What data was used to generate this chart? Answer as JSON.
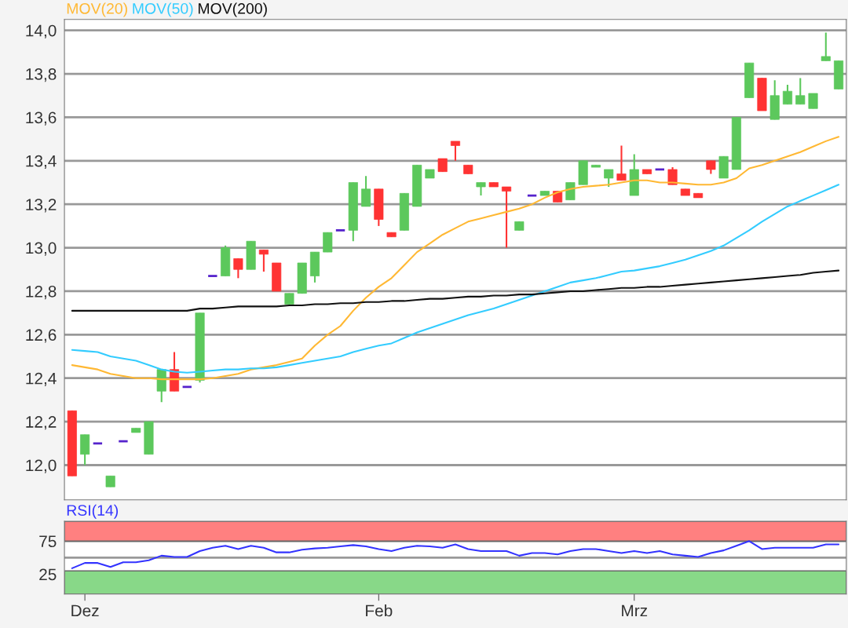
{
  "chart_data": [
    {
      "type": "candlestick",
      "tick_labels": "y",
      "grid": "y",
      "legend": "top left",
      "categories": [
        null,
        null,
        null,
        null,
        null,
        null,
        null,
        null,
        null,
        null,
        null,
        null,
        null,
        null,
        null,
        null,
        null,
        null,
        null,
        null,
        null,
        null,
        null,
        null,
        null,
        null,
        null,
        null,
        null,
        null,
        null,
        null,
        null,
        null,
        null,
        null,
        null,
        null,
        null,
        null,
        null,
        null,
        null,
        null,
        null,
        null,
        null,
        null,
        null,
        null,
        null,
        null,
        null,
        null,
        null,
        null,
        null,
        null,
        null,
        null,
        null
      ],
      "ohlc": [
        [
          12.25,
          12.25,
          11.95,
          11.95
        ],
        [
          12.05,
          12.14,
          12.0,
          12.14
        ],
        [
          12.1,
          12.1,
          12.1,
          12.1
        ],
        [
          11.9,
          11.95,
          11.9,
          11.95
        ],
        [
          12.11,
          12.11,
          12.11,
          12.11
        ],
        [
          12.15,
          12.17,
          12.15,
          12.17
        ],
        [
          12.05,
          12.2,
          12.05,
          12.2
        ],
        [
          12.34,
          12.44,
          12.29,
          12.44
        ],
        [
          12.44,
          12.52,
          12.34,
          12.34
        ],
        [
          12.36,
          12.36,
          12.36,
          12.36
        ],
        [
          12.39,
          12.7,
          12.38,
          12.7
        ],
        [
          12.87,
          12.87,
          12.87,
          12.87
        ],
        [
          12.87,
          13.01,
          12.87,
          13.0
        ],
        [
          12.95,
          12.95,
          12.86,
          12.9
        ],
        [
          12.9,
          13.03,
          12.9,
          13.03
        ],
        [
          12.99,
          12.99,
          12.89,
          12.97
        ],
        [
          12.93,
          12.93,
          12.8,
          12.8
        ],
        [
          12.74,
          12.79,
          12.74,
          12.79
        ],
        [
          12.79,
          12.93,
          12.79,
          12.93
        ],
        [
          12.87,
          12.98,
          12.84,
          12.98
        ],
        [
          12.98,
          13.07,
          12.98,
          13.07
        ],
        [
          13.08,
          13.08,
          13.08,
          13.08
        ],
        [
          13.08,
          13.3,
          13.03,
          13.3
        ],
        [
          13.19,
          13.33,
          13.19,
          13.27
        ],
        [
          13.27,
          13.27,
          13.1,
          13.13
        ],
        [
          13.07,
          13.07,
          13.05,
          13.05
        ],
        [
          13.08,
          13.25,
          13.08,
          13.25
        ],
        [
          13.19,
          13.38,
          13.19,
          13.38
        ],
        [
          13.32,
          13.36,
          13.32,
          13.36
        ],
        [
          13.41,
          13.41,
          13.35,
          13.35
        ],
        [
          13.49,
          13.49,
          13.4,
          13.47
        ],
        [
          13.38,
          13.38,
          13.34,
          13.34
        ],
        [
          13.28,
          13.3,
          13.24,
          13.3
        ],
        [
          13.3,
          13.3,
          13.28,
          13.28
        ],
        [
          13.28,
          13.28,
          13.0,
          13.26
        ],
        [
          13.08,
          13.12,
          13.08,
          13.12
        ],
        [
          13.24,
          13.24,
          13.24,
          13.24
        ],
        [
          13.24,
          13.26,
          13.24,
          13.26
        ],
        [
          13.26,
          13.26,
          13.21,
          13.21
        ],
        [
          13.22,
          13.3,
          13.22,
          13.3
        ],
        [
          13.29,
          13.4,
          13.29,
          13.4
        ],
        [
          13.37,
          13.38,
          13.37,
          13.38
        ],
        [
          13.32,
          13.36,
          13.28,
          13.36
        ],
        [
          13.34,
          13.47,
          13.31,
          13.31
        ],
        [
          13.24,
          13.43,
          13.24,
          13.36
        ],
        [
          13.36,
          13.36,
          13.34,
          13.34
        ],
        [
          13.36,
          13.36,
          13.36,
          13.36
        ],
        [
          13.36,
          13.37,
          13.29,
          13.29
        ],
        [
          13.27,
          13.27,
          13.24,
          13.24
        ],
        [
          13.25,
          13.25,
          13.23,
          13.23
        ],
        [
          13.4,
          13.4,
          13.34,
          13.36
        ],
        [
          13.32,
          13.42,
          13.32,
          13.42
        ],
        [
          13.36,
          13.6,
          13.36,
          13.6
        ],
        [
          13.69,
          13.85,
          13.69,
          13.85
        ],
        [
          13.78,
          13.78,
          13.63,
          13.63
        ],
        [
          13.59,
          13.77,
          13.59,
          13.7
        ],
        [
          13.66,
          13.75,
          13.66,
          13.72
        ],
        [
          13.66,
          13.78,
          13.66,
          13.7
        ],
        [
          13.64,
          13.71,
          13.64,
          13.71
        ],
        [
          13.86,
          13.99,
          13.86,
          13.88
        ],
        [
          13.73,
          13.86,
          13.73,
          13.86
        ]
      ],
      "colors": [
        "#ff3333",
        "#5cc85c",
        "#5522cc",
        "#5cc85c",
        "#5522cc",
        "#5cc85c",
        "#5cc85c",
        "#5cc85c",
        "#ff3333",
        "#5522cc",
        "#5cc85c",
        "#5522cc",
        "#5cc85c",
        "#ff3333",
        "#5cc85c",
        "#ff3333",
        "#ff3333",
        "#5cc85c",
        "#5cc85c",
        "#5cc85c",
        "#5cc85c",
        "#5522cc",
        "#5cc85c",
        "#5cc85c",
        "#ff3333",
        "#ff3333",
        "#5cc85c",
        "#5cc85c",
        "#5cc85c",
        "#ff3333",
        "#ff3333",
        "#ff3333",
        "#5cc85c",
        "#ff3333",
        "#ff3333",
        "#5cc85c",
        "#5522cc",
        "#5cc85c",
        "#ff3333",
        "#5cc85c",
        "#5cc85c",
        "#5cc85c",
        "#5cc85c",
        "#ff3333",
        "#5cc85c",
        "#ff3333",
        "#5522cc",
        "#ff3333",
        "#ff3333",
        "#ff3333",
        "#ff3333",
        "#5cc85c",
        "#5cc85c",
        "#5cc85c",
        "#ff3333",
        "#5cc85c",
        "#5cc85c",
        "#5cc85c",
        "#5cc85c",
        "#5cc85c",
        "#5cc85c"
      ],
      "series": [
        {
          "type": "line",
          "name": "MOV(20)",
          "color": "#ffb833",
          "values": [
            12.46,
            12.45,
            12.44,
            12.42,
            12.41,
            12.4,
            12.4,
            12.395,
            12.395,
            12.395,
            12.395,
            12.4,
            12.41,
            12.42,
            12.44,
            12.45,
            12.46,
            12.475,
            12.49,
            12.55,
            12.6,
            12.64,
            12.71,
            12.77,
            12.82,
            12.86,
            12.92,
            12.98,
            13.02,
            13.06,
            13.09,
            13.12,
            13.135,
            13.15,
            13.165,
            13.18,
            13.2,
            13.23,
            13.255,
            13.27,
            13.28,
            13.285,
            13.29,
            13.3,
            13.31,
            13.31,
            13.3,
            13.3,
            13.295,
            13.29,
            13.29,
            13.3,
            13.32,
            13.365,
            13.38,
            13.4,
            13.42,
            13.44,
            13.465,
            13.49,
            13.51
          ]
        },
        {
          "type": "line",
          "name": "MOV(50)",
          "color": "#33ccff",
          "values": [
            12.53,
            12.525,
            12.52,
            12.5,
            12.49,
            12.48,
            12.46,
            12.44,
            12.43,
            12.425,
            12.43,
            12.435,
            12.44,
            12.44,
            12.445,
            12.445,
            12.45,
            12.46,
            12.47,
            12.48,
            12.49,
            12.5,
            12.52,
            12.535,
            12.55,
            12.56,
            12.585,
            12.61,
            12.63,
            12.65,
            12.67,
            12.69,
            12.705,
            12.72,
            12.74,
            12.76,
            12.78,
            12.8,
            12.82,
            12.84,
            12.85,
            12.86,
            12.875,
            12.89,
            12.895,
            12.905,
            12.915,
            12.93,
            12.945,
            12.965,
            12.985,
            13.01,
            13.045,
            13.08,
            13.12,
            13.155,
            13.19,
            13.215,
            13.24,
            13.265,
            13.29
          ]
        },
        {
          "type": "line",
          "name": "MOV(200)",
          "color": "#111111",
          "values": [
            12.71,
            12.71,
            12.71,
            12.71,
            12.71,
            12.71,
            12.71,
            12.71,
            12.71,
            12.71,
            12.72,
            12.72,
            12.725,
            12.73,
            12.73,
            12.73,
            12.73,
            12.735,
            12.735,
            12.74,
            12.74,
            12.745,
            12.745,
            12.75,
            12.75,
            12.755,
            12.755,
            12.76,
            12.765,
            12.765,
            12.77,
            12.775,
            12.775,
            12.78,
            12.78,
            12.785,
            12.785,
            12.79,
            12.795,
            12.8,
            12.8,
            12.805,
            12.81,
            12.815,
            12.815,
            12.82,
            12.82,
            12.825,
            12.83,
            12.835,
            12.84,
            12.845,
            12.85,
            12.855,
            12.86,
            12.865,
            12.87,
            12.875,
            12.885,
            12.89,
            12.895
          ]
        }
      ],
      "ylim": [
        11.84,
        14.05
      ],
      "yticks": [
        {
          "value": 12.0,
          "label": "12,0"
        },
        {
          "value": 12.2,
          "label": "12,2"
        },
        {
          "value": 12.4,
          "label": "12,4"
        },
        {
          "value": 12.6,
          "label": "12,6"
        },
        {
          "value": 12.8,
          "label": "12,8"
        },
        {
          "value": 13.0,
          "label": "13,0"
        },
        {
          "value": 13.2,
          "label": "13,2"
        },
        {
          "value": 13.4,
          "label": "13,4"
        },
        {
          "value": 13.6,
          "label": "13,6"
        },
        {
          "value": 13.8,
          "label": "13,8"
        },
        {
          "value": 14.0,
          "label": "14,0"
        }
      ]
    },
    {
      "type": "line",
      "grid": "y",
      "legend": "top left",
      "categories": [
        null,
        "Dez",
        null,
        null,
        null,
        null,
        null,
        null,
        null,
        null,
        null,
        null,
        null,
        null,
        null,
        null,
        null,
        null,
        null,
        null,
        null,
        null,
        null,
        null,
        "Feb",
        null,
        null,
        null,
        null,
        null,
        null,
        null,
        null,
        null,
        null,
        null,
        null,
        null,
        null,
        null,
        null,
        null,
        null,
        null,
        "Mrz",
        null,
        null,
        null,
        null,
        null,
        null,
        null,
        null,
        null,
        null,
        null,
        null,
        null,
        null,
        null,
        null
      ],
      "series": [
        {
          "type": "line",
          "name": "RSI(14)",
          "color": "#3333ff",
          "values": [
            34,
            42,
            42,
            36,
            43,
            43,
            46,
            53,
            51,
            51,
            60,
            65,
            68,
            63,
            68,
            65,
            58,
            58,
            62,
            64,
            65,
            67,
            69,
            67,
            63,
            60,
            65,
            68,
            67,
            65,
            70,
            63,
            60,
            60,
            60,
            53,
            57,
            57,
            55,
            60,
            63,
            63,
            60,
            57,
            60,
            57,
            60,
            55,
            53,
            51,
            57,
            61,
            68,
            75,
            63,
            65,
            65,
            65,
            65,
            70,
            70
          ]
        }
      ],
      "bands": [
        {
          "axis": "y",
          "from": 75,
          "to": 105,
          "color": "#ff8080"
        },
        {
          "axis": "y",
          "from": -5,
          "to": 30,
          "color": "#88d888"
        }
      ],
      "ylim": [
        -5,
        105
      ],
      "yticks": [
        25,
        {
          "value": 50,
          "label": null
        },
        75
      ]
    }
  ]
}
